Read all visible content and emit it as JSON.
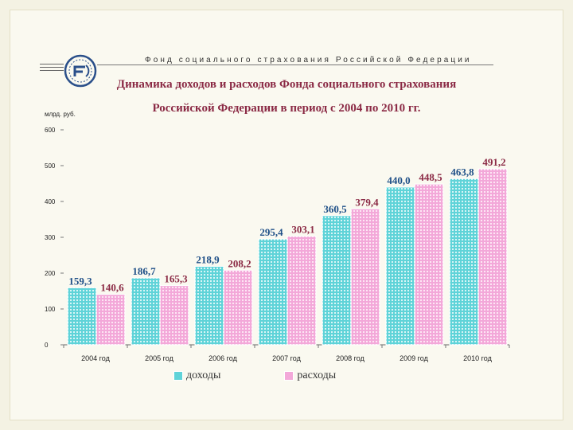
{
  "header": {
    "org": "Фонд социального страхования Российской Федерации",
    "title_line1": "Динамика доходов и расходов Фонда социального страхования",
    "title_line2": "Российской Федерации в период с 2004 по 2010 гг."
  },
  "colors": {
    "income": "#5fd3d8",
    "expense": "#f3a8d9",
    "income_label": "#1e4f87",
    "expense_label": "#8b2a45"
  },
  "chart_data": {
    "type": "bar",
    "ylabel": "млрд. руб.",
    "ylim": [
      0,
      600
    ],
    "yticks": [
      "0",
      "100",
      "200",
      "300",
      "400",
      "500",
      "600"
    ],
    "categories": [
      "2004 год",
      "2005 год",
      "2006 год",
      "2007 год",
      "2008 год",
      "2009 год",
      "2010 год"
    ],
    "series": [
      {
        "name": "доходы",
        "values": [
          159.3,
          186.7,
          218.9,
          295.4,
          360.5,
          440.0,
          463.8
        ],
        "labels": [
          "159,3",
          "186,7",
          "218,9",
          "295,4",
          "360,5",
          "440,0",
          "463,8"
        ]
      },
      {
        "name": "расходы",
        "values": [
          140.6,
          165.3,
          208.2,
          303.1,
          379.4,
          448.5,
          491.2
        ],
        "labels": [
          "140,6",
          "165,3",
          "208,2",
          "303,1",
          "379,4",
          "448,5",
          "491,2"
        ]
      }
    ],
    "legend_position": "bottom",
    "grid": false
  }
}
